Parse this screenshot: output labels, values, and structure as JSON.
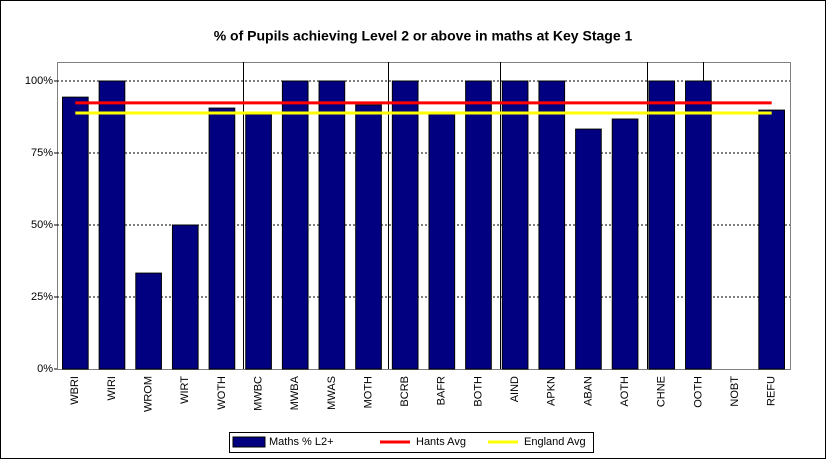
{
  "chart_data": {
    "type": "bar",
    "title": "% of Pupils achieving Level 2 or above in maths at Key Stage 1",
    "categories": [
      "WBRI",
      "WIRI",
      "WROM",
      "WIRT",
      "WOTH",
      "MWBC",
      "MWBA",
      "MWAS",
      "MOTH",
      "BCRB",
      "BAFR",
      "BOTH",
      "AIND",
      "APKN",
      "ABAN",
      "AOTH",
      "CHNE",
      "OOTH",
      "NOBT",
      "REFU"
    ],
    "series": [
      {
        "name": "Maths % L2+",
        "type": "bar",
        "color": "#000080",
        "values": [
          94.4,
          100,
          33.3,
          50,
          90.6,
          88.5,
          100,
          100,
          91.7,
          100,
          89.2,
          100,
          100,
          100,
          83.3,
          86.8,
          100,
          100,
          0,
          89.9
        ]
      },
      {
        "name": "Hants Avg",
        "type": "line",
        "color": "#ff0000",
        "values": [
          92.4,
          92.4,
          92.4,
          92.4,
          92.4,
          92.4,
          92.4,
          92.4,
          92.4,
          92.4,
          92.4,
          92.4,
          92.4,
          92.4,
          92.4,
          92.4,
          92.4,
          92.4,
          92.4,
          92.4
        ]
      },
      {
        "name": "England Avg",
        "type": "line",
        "color": "#ffff00",
        "values": [
          88.9,
          88.9,
          88.9,
          88.9,
          88.9,
          88.9,
          88.9,
          88.9,
          88.9,
          88.9,
          88.9,
          88.9,
          88.9,
          88.9,
          88.9,
          88.9,
          88.9,
          88.9,
          88.9,
          88.9
        ]
      }
    ],
    "ylim": [
      0,
      106.6
    ],
    "yticks": [
      {
        "value": 0,
        "label": "0%"
      },
      {
        "value": 25,
        "label": "25%"
      },
      {
        "value": 50,
        "label": "50%"
      },
      {
        "value": 75,
        "label": "75%"
      },
      {
        "value": 100,
        "label": "100%"
      }
    ],
    "grid": true,
    "legend": "bottom"
  }
}
